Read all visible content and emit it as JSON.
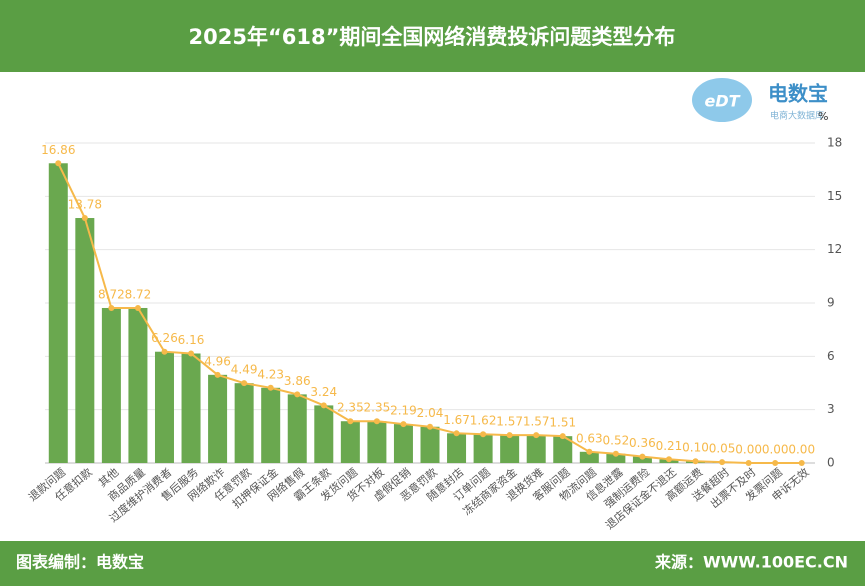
{
  "chart_data": {
    "type": "bar-line",
    "title": "2025年“618”期间全国网络消费投诉问题类型分布",
    "y_unit": "%",
    "categories": [
      "退款问题",
      "任意扣款",
      "其他",
      "商品质量",
      "过度维护消费者",
      "售后服务",
      "网络欺诈",
      "任意罚款",
      "扣押保证金",
      "网络售假",
      "霸王条款",
      "发货问题",
      "货不对板",
      "虚假促销",
      "恶意罚款",
      "随意封店",
      "订单问题",
      "冻结商家资金",
      "退换货难",
      "客服问题",
      "物流问题",
      "信息泄露",
      "强制运费险",
      "退店保证金不退还",
      "高额运费",
      "送餐超时",
      "出票不及时",
      "发票问题",
      "申诉无效"
    ],
    "values": [
      16.86,
      13.78,
      8.72,
      8.72,
      6.26,
      6.16,
      4.96,
      4.49,
      4.23,
      3.86,
      3.24,
      2.35,
      2.35,
      2.19,
      2.04,
      1.67,
      1.62,
      1.57,
      1.57,
      1.51,
      0.63,
      0.52,
      0.36,
      0.21,
      0.1,
      0.05,
      0.0,
      0.0,
      0.0
    ],
    "value_labels": [
      "16.86",
      "13.78",
      "8.72",
      "8.72",
      "6.26",
      "6.16",
      "4.96",
      "4.49",
      "4.23",
      "3.86",
      "3.24",
      "2.35",
      "2.35",
      "2.19",
      "2.04",
      "1.67",
      "1.62",
      "1.57",
      "1.57",
      "1.51",
      "0.63",
      "0.52",
      "0.36",
      "0.21",
      "0.10",
      "0.05",
      "0.00",
      "0.00",
      "0.00"
    ],
    "bar_color": "#6aa84f",
    "line_color": "#f6b94a",
    "ylim": [
      0,
      18
    ],
    "yticks": [
      0,
      3,
      6,
      9,
      12,
      15,
      18
    ],
    "grid": true
  },
  "logo": {
    "name": "电数宝",
    "tagline": "电商大数据库"
  },
  "footer": {
    "left": "图表编制：电数宝",
    "right": "来源：WWW.100EC.CN"
  }
}
